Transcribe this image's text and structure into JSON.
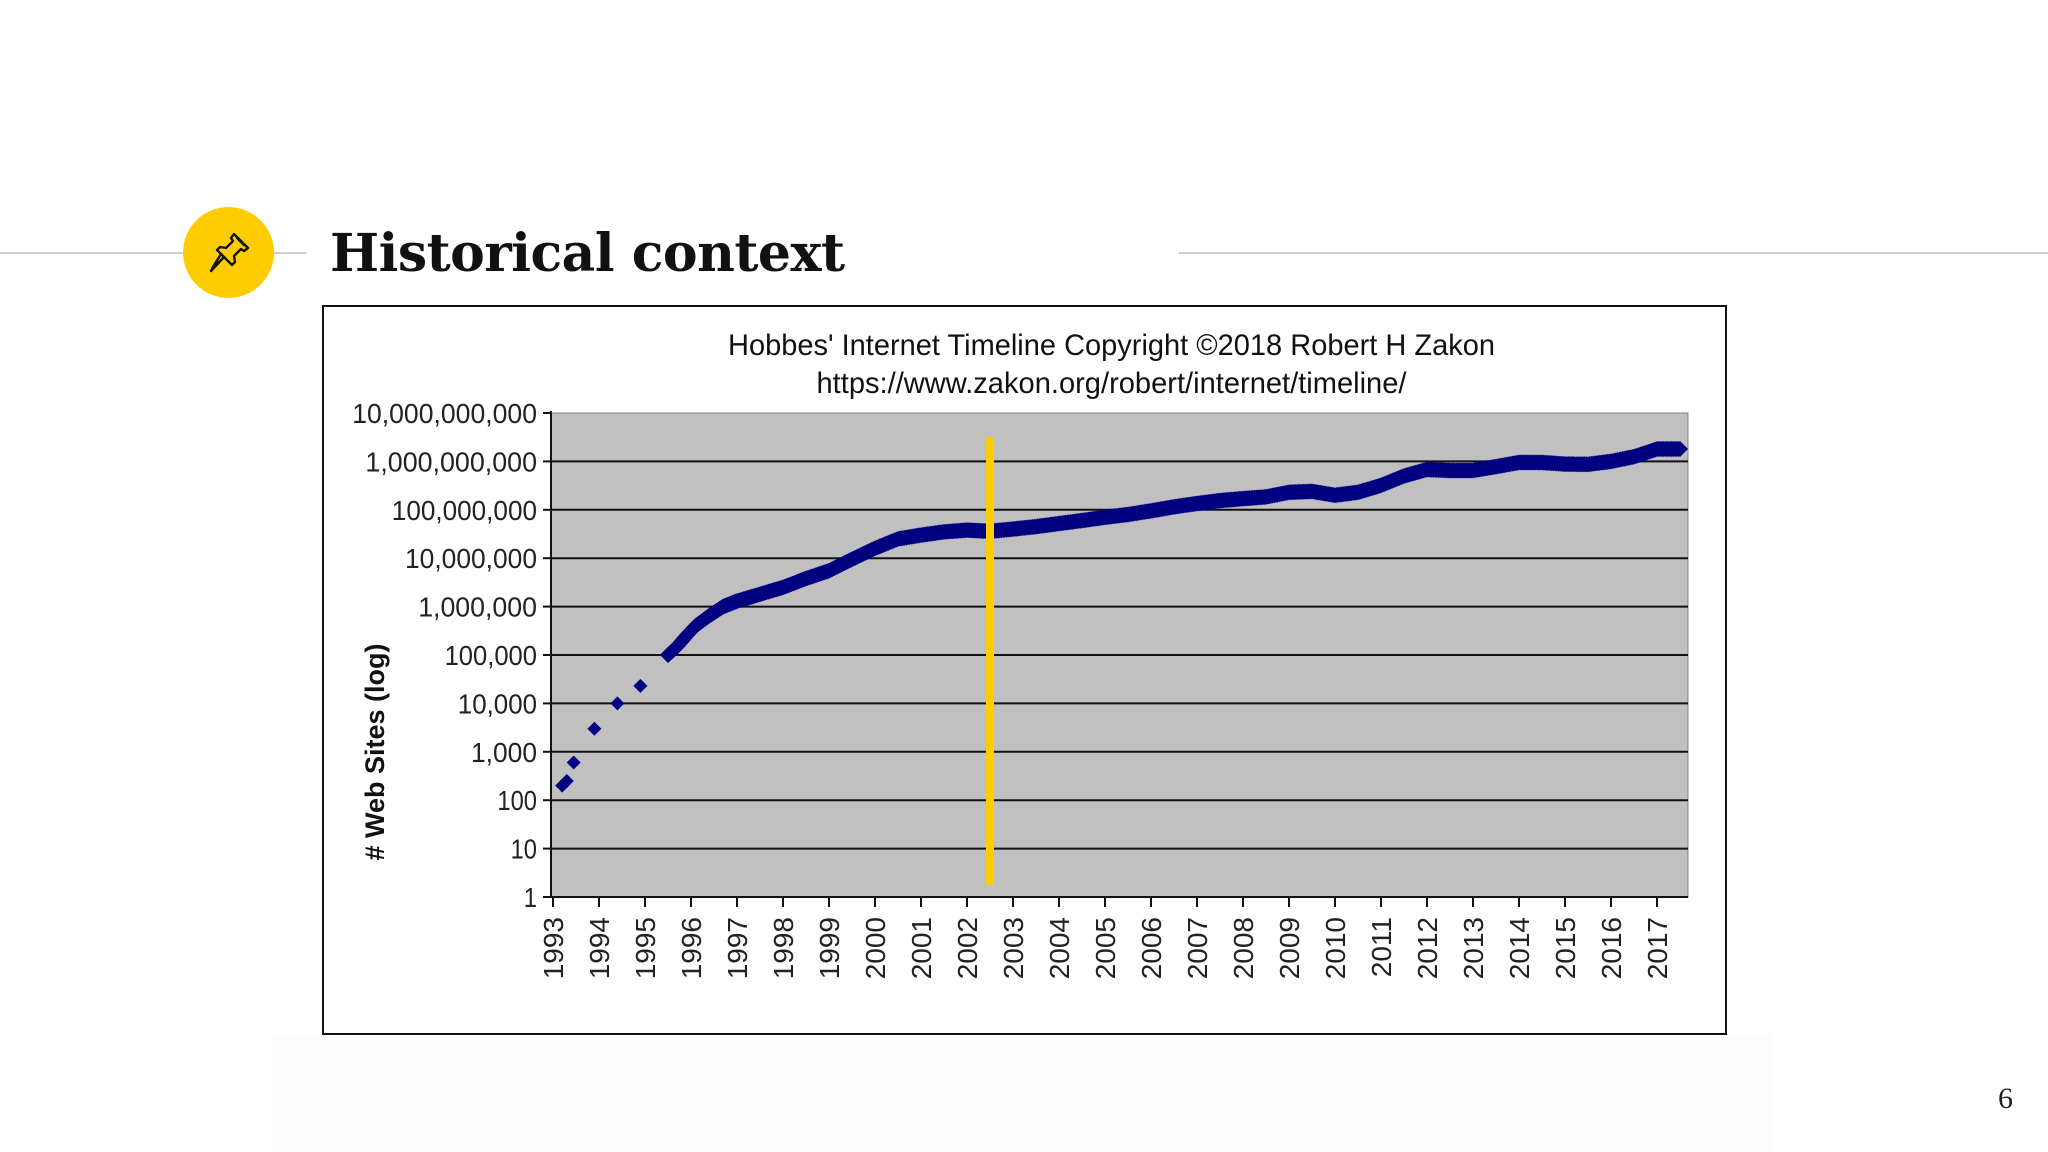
{
  "slide": {
    "title": "Historical context",
    "page_number": "6",
    "icon": "pushpin-icon",
    "accent_color": "#FFCC00",
    "rule_color": "#CFCFCF"
  },
  "chart_data": {
    "type": "scatter",
    "title": "Hobbes' Internet Timeline Copyright ©2018 Robert H Zakon",
    "subtitle": "https://www.zakon.org/robert/internet/timeline/",
    "xlabel": "",
    "ylabel": "# Web Sites (log)",
    "yscale": "log",
    "ylim": [
      1,
      10000000000
    ],
    "xlim": [
      1993,
      2017.7
    ],
    "grid": true,
    "legend": "none",
    "plot_background": "#C0C0C0",
    "marker_color": "#000080",
    "marker": "diamond",
    "y_tick_labels": [
      "1",
      "10",
      "100",
      "1,000",
      "10,000",
      "100,000",
      "1,000,000",
      "10,000,000",
      "100,000,000",
      "1,000,000,000",
      "10,000,000,000"
    ],
    "x_tick_labels": [
      "1993",
      "1994",
      "1995",
      "1996",
      "1997",
      "1998",
      "1999",
      "2000",
      "2001",
      "2002",
      "2003",
      "2004",
      "2005",
      "2006",
      "2007",
      "2008",
      "2009",
      "2010",
      "2011",
      "2012",
      "2013",
      "2014",
      "2015",
      "2016",
      "2017"
    ],
    "annotation": {
      "type": "vertical-line",
      "x": 2002.5,
      "color": "#FFCC00",
      "y_from": 1.3,
      "y_to": 3000000000
    },
    "series": [
      {
        "name": "# Web Sites",
        "x": [
          1993.2,
          1993.3,
          1993.45,
          1993.9,
          1994.4,
          1994.9,
          1995.5,
          1995.7,
          1995.9,
          1996.1,
          1996.4,
          1996.7,
          1997.0,
          1997.5,
          1998.0,
          1998.5,
          1999.0,
          1999.5,
          2000.0,
          2000.5,
          2001.0,
          2001.5,
          2002.0,
          2002.5,
          2003.0,
          2003.5,
          2004.0,
          2004.5,
          2005.0,
          2005.5,
          2006.0,
          2006.5,
          2007.0,
          2007.5,
          2008.0,
          2008.5,
          2009.0,
          2009.5,
          2010.0,
          2010.5,
          2011.0,
          2011.5,
          2012.0,
          2012.5,
          2013.0,
          2013.5,
          2014.0,
          2014.5,
          2015.0,
          2015.5,
          2016.0,
          2016.5,
          2017.0,
          2017.5
        ],
        "values": [
          200,
          250,
          600,
          3000,
          10000,
          23000,
          100000,
          150000,
          250000,
          400000,
          650000,
          1000000,
          1300000,
          1800000,
          2500000,
          3800000,
          5500000,
          9500000,
          16000000,
          25000000,
          30000000,
          35000000,
          38000000,
          36000000,
          40000000,
          45000000,
          52000000,
          60000000,
          70000000,
          80000000,
          95000000,
          115000000,
          135000000,
          155000000,
          170000000,
          185000000,
          230000000,
          240000000,
          200000000,
          230000000,
          320000000,
          500000000,
          680000000,
          650000000,
          650000000,
          780000000,
          950000000,
          950000000,
          880000000,
          870000000,
          1000000000,
          1250000000,
          1800000000,
          1800000000
        ]
      }
    ]
  }
}
